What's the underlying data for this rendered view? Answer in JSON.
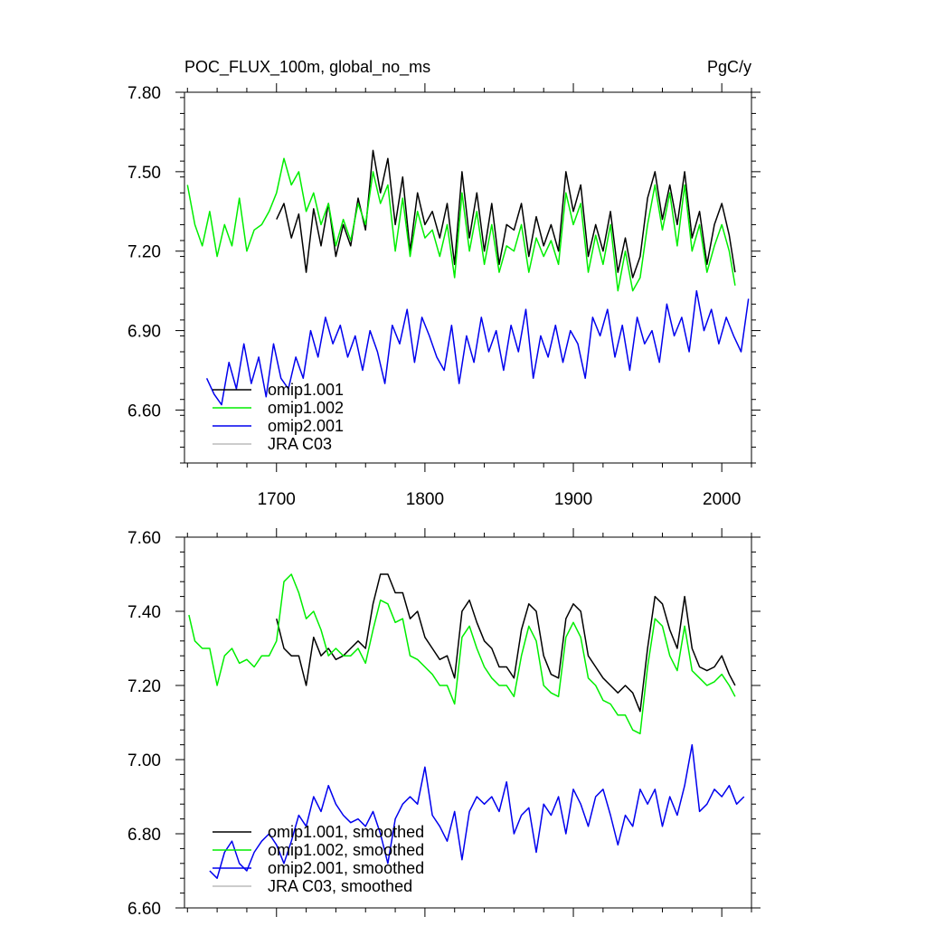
{
  "chart_data": [
    {
      "type": "line",
      "title": "POC_FLUX_100m, global_no_ms",
      "units": "PgC/y",
      "xlabel": "",
      "ylabel": "",
      "xlim": [
        1638,
        2020
      ],
      "ylim": [
        6.4,
        7.8
      ],
      "xticks": [
        1700,
        1800,
        1900,
        2000
      ],
      "xtick_labels": [
        "1700",
        "1800",
        "1900",
        "2000"
      ],
      "yticks": [
        6.6,
        6.9,
        7.2,
        7.5,
        7.8
      ],
      "ytick_labels": [
        "6.60",
        "6.90",
        "7.20",
        "7.50",
        "7.80"
      ],
      "grid": false,
      "legend_position": "bottom-left",
      "series": [
        {
          "name": "omip1.001",
          "color": "#000000",
          "x": [
            1700,
            1705,
            1710,
            1715,
            1720,
            1725,
            1730,
            1735,
            1740,
            1745,
            1750,
            1755,
            1760,
            1765,
            1770,
            1775,
            1780,
            1785,
            1790,
            1795,
            1800,
            1805,
            1810,
            1815,
            1820,
            1825,
            1830,
            1835,
            1840,
            1845,
            1850,
            1855,
            1860,
            1865,
            1870,
            1875,
            1880,
            1885,
            1890,
            1895,
            1900,
            1905,
            1910,
            1915,
            1920,
            1925,
            1930,
            1935,
            1940,
            1945,
            1950,
            1955,
            1960,
            1965,
            1970,
            1975,
            1980,
            1985,
            1990,
            1995,
            2000,
            2005,
            2009
          ],
          "y": [
            7.32,
            7.38,
            7.25,
            7.34,
            7.12,
            7.36,
            7.22,
            7.38,
            7.18,
            7.3,
            7.22,
            7.4,
            7.28,
            7.58,
            7.42,
            7.55,
            7.3,
            7.48,
            7.2,
            7.42,
            7.3,
            7.35,
            7.25,
            7.38,
            7.15,
            7.5,
            7.25,
            7.42,
            7.2,
            7.38,
            7.15,
            7.3,
            7.28,
            7.38,
            7.18,
            7.33,
            7.22,
            7.3,
            7.2,
            7.5,
            7.35,
            7.45,
            7.18,
            7.3,
            7.2,
            7.35,
            7.12,
            7.25,
            7.1,
            7.18,
            7.4,
            7.5,
            7.32,
            7.45,
            7.3,
            7.5,
            7.25,
            7.35,
            7.15,
            7.3,
            7.38,
            7.26,
            7.12
          ]
        },
        {
          "name": "omip1.002",
          "color": "#00ee00",
          "x": [
            1640,
            1645,
            1650,
            1655,
            1660,
            1665,
            1670,
            1675,
            1680,
            1685,
            1690,
            1695,
            1700,
            1705,
            1710,
            1715,
            1720,
            1725,
            1730,
            1735,
            1740,
            1745,
            1750,
            1755,
            1760,
            1765,
            1770,
            1775,
            1780,
            1785,
            1790,
            1795,
            1800,
            1805,
            1810,
            1815,
            1820,
            1825,
            1830,
            1835,
            1840,
            1845,
            1850,
            1855,
            1860,
            1865,
            1870,
            1875,
            1880,
            1885,
            1890,
            1895,
            1900,
            1905,
            1910,
            1915,
            1920,
            1925,
            1930,
            1935,
            1940,
            1945,
            1950,
            1955,
            1960,
            1965,
            1970,
            1975,
            1980,
            1985,
            1990,
            1995,
            2000,
            2005,
            2009
          ],
          "y": [
            7.45,
            7.3,
            7.22,
            7.35,
            7.18,
            7.3,
            7.22,
            7.4,
            7.2,
            7.28,
            7.3,
            7.35,
            7.42,
            7.55,
            7.45,
            7.5,
            7.35,
            7.42,
            7.3,
            7.38,
            7.22,
            7.32,
            7.24,
            7.38,
            7.3,
            7.5,
            7.38,
            7.45,
            7.2,
            7.4,
            7.18,
            7.35,
            7.25,
            7.28,
            7.18,
            7.3,
            7.1,
            7.42,
            7.2,
            7.35,
            7.15,
            7.3,
            7.12,
            7.22,
            7.2,
            7.3,
            7.12,
            7.25,
            7.18,
            7.24,
            7.15,
            7.42,
            7.3,
            7.38,
            7.12,
            7.26,
            7.15,
            7.3,
            7.05,
            7.2,
            7.05,
            7.1,
            7.3,
            7.45,
            7.28,
            7.42,
            7.22,
            7.45,
            7.2,
            7.3,
            7.12,
            7.22,
            7.3,
            7.2,
            7.07
          ]
        },
        {
          "name": "omip2.001",
          "color": "#0000ee",
          "x": [
            1653,
            1658,
            1663,
            1668,
            1673,
            1678,
            1683,
            1688,
            1693,
            1698,
            1703,
            1708,
            1713,
            1718,
            1723,
            1728,
            1733,
            1738,
            1743,
            1748,
            1753,
            1758,
            1763,
            1768,
            1773,
            1778,
            1783,
            1788,
            1793,
            1798,
            1803,
            1808,
            1813,
            1818,
            1823,
            1828,
            1833,
            1838,
            1843,
            1848,
            1853,
            1858,
            1863,
            1868,
            1873,
            1878,
            1883,
            1888,
            1893,
            1898,
            1903,
            1908,
            1913,
            1918,
            1923,
            1928,
            1933,
            1938,
            1943,
            1948,
            1953,
            1958,
            1963,
            1968,
            1973,
            1978,
            1983,
            1988,
            1993,
            1998,
            2003,
            2008,
            2013,
            2018
          ],
          "y": [
            6.72,
            6.66,
            6.62,
            6.78,
            6.68,
            6.85,
            6.7,
            6.8,
            6.65,
            6.85,
            6.72,
            6.68,
            6.8,
            6.72,
            6.9,
            6.8,
            6.95,
            6.85,
            6.92,
            6.8,
            6.88,
            6.75,
            6.9,
            6.82,
            6.7,
            6.92,
            6.85,
            6.98,
            6.78,
            6.95,
            6.88,
            6.8,
            6.75,
            6.92,
            6.7,
            6.88,
            6.78,
            6.95,
            6.82,
            6.9,
            6.75,
            6.92,
            6.82,
            6.98,
            6.72,
            6.88,
            6.8,
            6.92,
            6.78,
            6.9,
            6.85,
            6.72,
            6.95,
            6.88,
            6.98,
            6.8,
            6.92,
            6.75,
            6.95,
            6.85,
            6.9,
            6.78,
            7.0,
            6.88,
            6.95,
            6.82,
            7.05,
            6.9,
            6.98,
            6.85,
            6.95,
            6.88,
            6.82,
            7.02
          ]
        },
        {
          "name": "JRA C03",
          "color": "#bbbbbb",
          "x": [],
          "y": []
        }
      ]
    },
    {
      "type": "line",
      "title": "",
      "xlabel": "",
      "ylabel": "",
      "xlim": [
        1638,
        2020
      ],
      "ylim": [
        6.6,
        7.6
      ],
      "xticks": [
        1700,
        1800,
        1900,
        2000
      ],
      "yticks": [
        6.6,
        6.8,
        7.0,
        7.2,
        7.4,
        7.6
      ],
      "ytick_labels": [
        "6.60",
        "6.80",
        "7.00",
        "7.20",
        "7.40",
        "7.60"
      ],
      "grid": false,
      "legend_position": "bottom-left",
      "series": [
        {
          "name": "omip1.001, smoothed",
          "color": "#000000",
          "x": [
            1700,
            1705,
            1710,
            1715,
            1720,
            1725,
            1730,
            1735,
            1740,
            1745,
            1750,
            1755,
            1760,
            1765,
            1770,
            1775,
            1780,
            1785,
            1790,
            1795,
            1800,
            1805,
            1810,
            1815,
            1820,
            1825,
            1830,
            1835,
            1840,
            1845,
            1850,
            1855,
            1860,
            1865,
            1870,
            1875,
            1880,
            1885,
            1890,
            1895,
            1900,
            1905,
            1910,
            1915,
            1920,
            1925,
            1930,
            1935,
            1940,
            1945,
            1950,
            1955,
            1960,
            1965,
            1970,
            1975,
            1980,
            1985,
            1990,
            1995,
            2000,
            2005,
            2009
          ],
          "y": [
            7.38,
            7.3,
            7.28,
            7.28,
            7.2,
            7.33,
            7.28,
            7.3,
            7.27,
            7.28,
            7.3,
            7.32,
            7.3,
            7.42,
            7.5,
            7.5,
            7.45,
            7.45,
            7.38,
            7.4,
            7.33,
            7.3,
            7.27,
            7.28,
            7.22,
            7.4,
            7.43,
            7.37,
            7.32,
            7.3,
            7.25,
            7.25,
            7.22,
            7.35,
            7.42,
            7.4,
            7.28,
            7.23,
            7.22,
            7.38,
            7.42,
            7.4,
            7.28,
            7.25,
            7.22,
            7.2,
            7.18,
            7.2,
            7.18,
            7.13,
            7.3,
            7.44,
            7.42,
            7.35,
            7.3,
            7.44,
            7.3,
            7.25,
            7.24,
            7.25,
            7.28,
            7.23,
            7.2
          ]
        },
        {
          "name": "omip1.002, smoothed",
          "color": "#00ee00",
          "x": [
            1641,
            1645,
            1650,
            1655,
            1660,
            1665,
            1670,
            1675,
            1680,
            1685,
            1690,
            1695,
            1700,
            1705,
            1710,
            1715,
            1720,
            1725,
            1730,
            1735,
            1740,
            1745,
            1750,
            1755,
            1760,
            1765,
            1770,
            1775,
            1780,
            1785,
            1790,
            1795,
            1800,
            1805,
            1810,
            1815,
            1820,
            1825,
            1830,
            1835,
            1840,
            1845,
            1850,
            1855,
            1860,
            1865,
            1870,
            1875,
            1880,
            1885,
            1890,
            1895,
            1900,
            1905,
            1910,
            1915,
            1920,
            1925,
            1930,
            1935,
            1940,
            1945,
            1950,
            1955,
            1960,
            1965,
            1970,
            1975,
            1980,
            1985,
            1990,
            1995,
            2000,
            2005,
            2009
          ],
          "y": [
            7.39,
            7.32,
            7.3,
            7.3,
            7.2,
            7.28,
            7.3,
            7.26,
            7.27,
            7.25,
            7.28,
            7.28,
            7.32,
            7.48,
            7.5,
            7.45,
            7.38,
            7.4,
            7.35,
            7.28,
            7.3,
            7.28,
            7.28,
            7.3,
            7.26,
            7.35,
            7.43,
            7.42,
            7.37,
            7.38,
            7.28,
            7.27,
            7.25,
            7.23,
            7.2,
            7.2,
            7.15,
            7.33,
            7.36,
            7.3,
            7.25,
            7.22,
            7.2,
            7.2,
            7.17,
            7.28,
            7.36,
            7.32,
            7.2,
            7.18,
            7.17,
            7.33,
            7.37,
            7.33,
            7.22,
            7.2,
            7.16,
            7.15,
            7.12,
            7.12,
            7.08,
            7.07,
            7.25,
            7.38,
            7.36,
            7.28,
            7.24,
            7.36,
            7.24,
            7.22,
            7.2,
            7.21,
            7.23,
            7.2,
            7.17
          ]
        },
        {
          "name": "omip2.001, smoothed",
          "color": "#0000ee",
          "x": [
            1655,
            1660,
            1665,
            1670,
            1675,
            1680,
            1685,
            1690,
            1695,
            1700,
            1705,
            1710,
            1715,
            1720,
            1725,
            1730,
            1735,
            1740,
            1745,
            1750,
            1755,
            1760,
            1765,
            1770,
            1775,
            1780,
            1785,
            1790,
            1795,
            1800,
            1805,
            1810,
            1815,
            1820,
            1825,
            1830,
            1835,
            1840,
            1845,
            1850,
            1855,
            1860,
            1865,
            1870,
            1875,
            1880,
            1885,
            1890,
            1895,
            1900,
            1905,
            1910,
            1915,
            1920,
            1925,
            1930,
            1935,
            1940,
            1945,
            1950,
            1955,
            1960,
            1965,
            1970,
            1975,
            1980,
            1985,
            1990,
            1995,
            2000,
            2005,
            2010,
            2015
          ],
          "y": [
            6.7,
            6.68,
            6.75,
            6.78,
            6.72,
            6.7,
            6.75,
            6.78,
            6.8,
            6.77,
            6.72,
            6.78,
            6.85,
            6.82,
            6.9,
            6.86,
            6.93,
            6.88,
            6.85,
            6.83,
            6.84,
            6.82,
            6.86,
            6.8,
            6.72,
            6.84,
            6.88,
            6.9,
            6.88,
            6.98,
            6.85,
            6.82,
            6.78,
            6.86,
            6.73,
            6.86,
            6.9,
            6.88,
            6.9,
            6.86,
            6.94,
            6.8,
            6.85,
            6.87,
            6.75,
            6.88,
            6.85,
            6.9,
            6.8,
            6.92,
            6.88,
            6.82,
            6.9,
            6.92,
            6.85,
            6.77,
            6.85,
            6.82,
            6.92,
            6.88,
            6.92,
            6.82,
            6.9,
            6.85,
            6.93,
            7.04,
            6.86,
            6.88,
            6.92,
            6.9,
            6.93,
            6.88,
            6.9
          ]
        },
        {
          "name": "JRA C03, smoothed",
          "color": "#bbbbbb",
          "x": [],
          "y": []
        }
      ]
    }
  ]
}
